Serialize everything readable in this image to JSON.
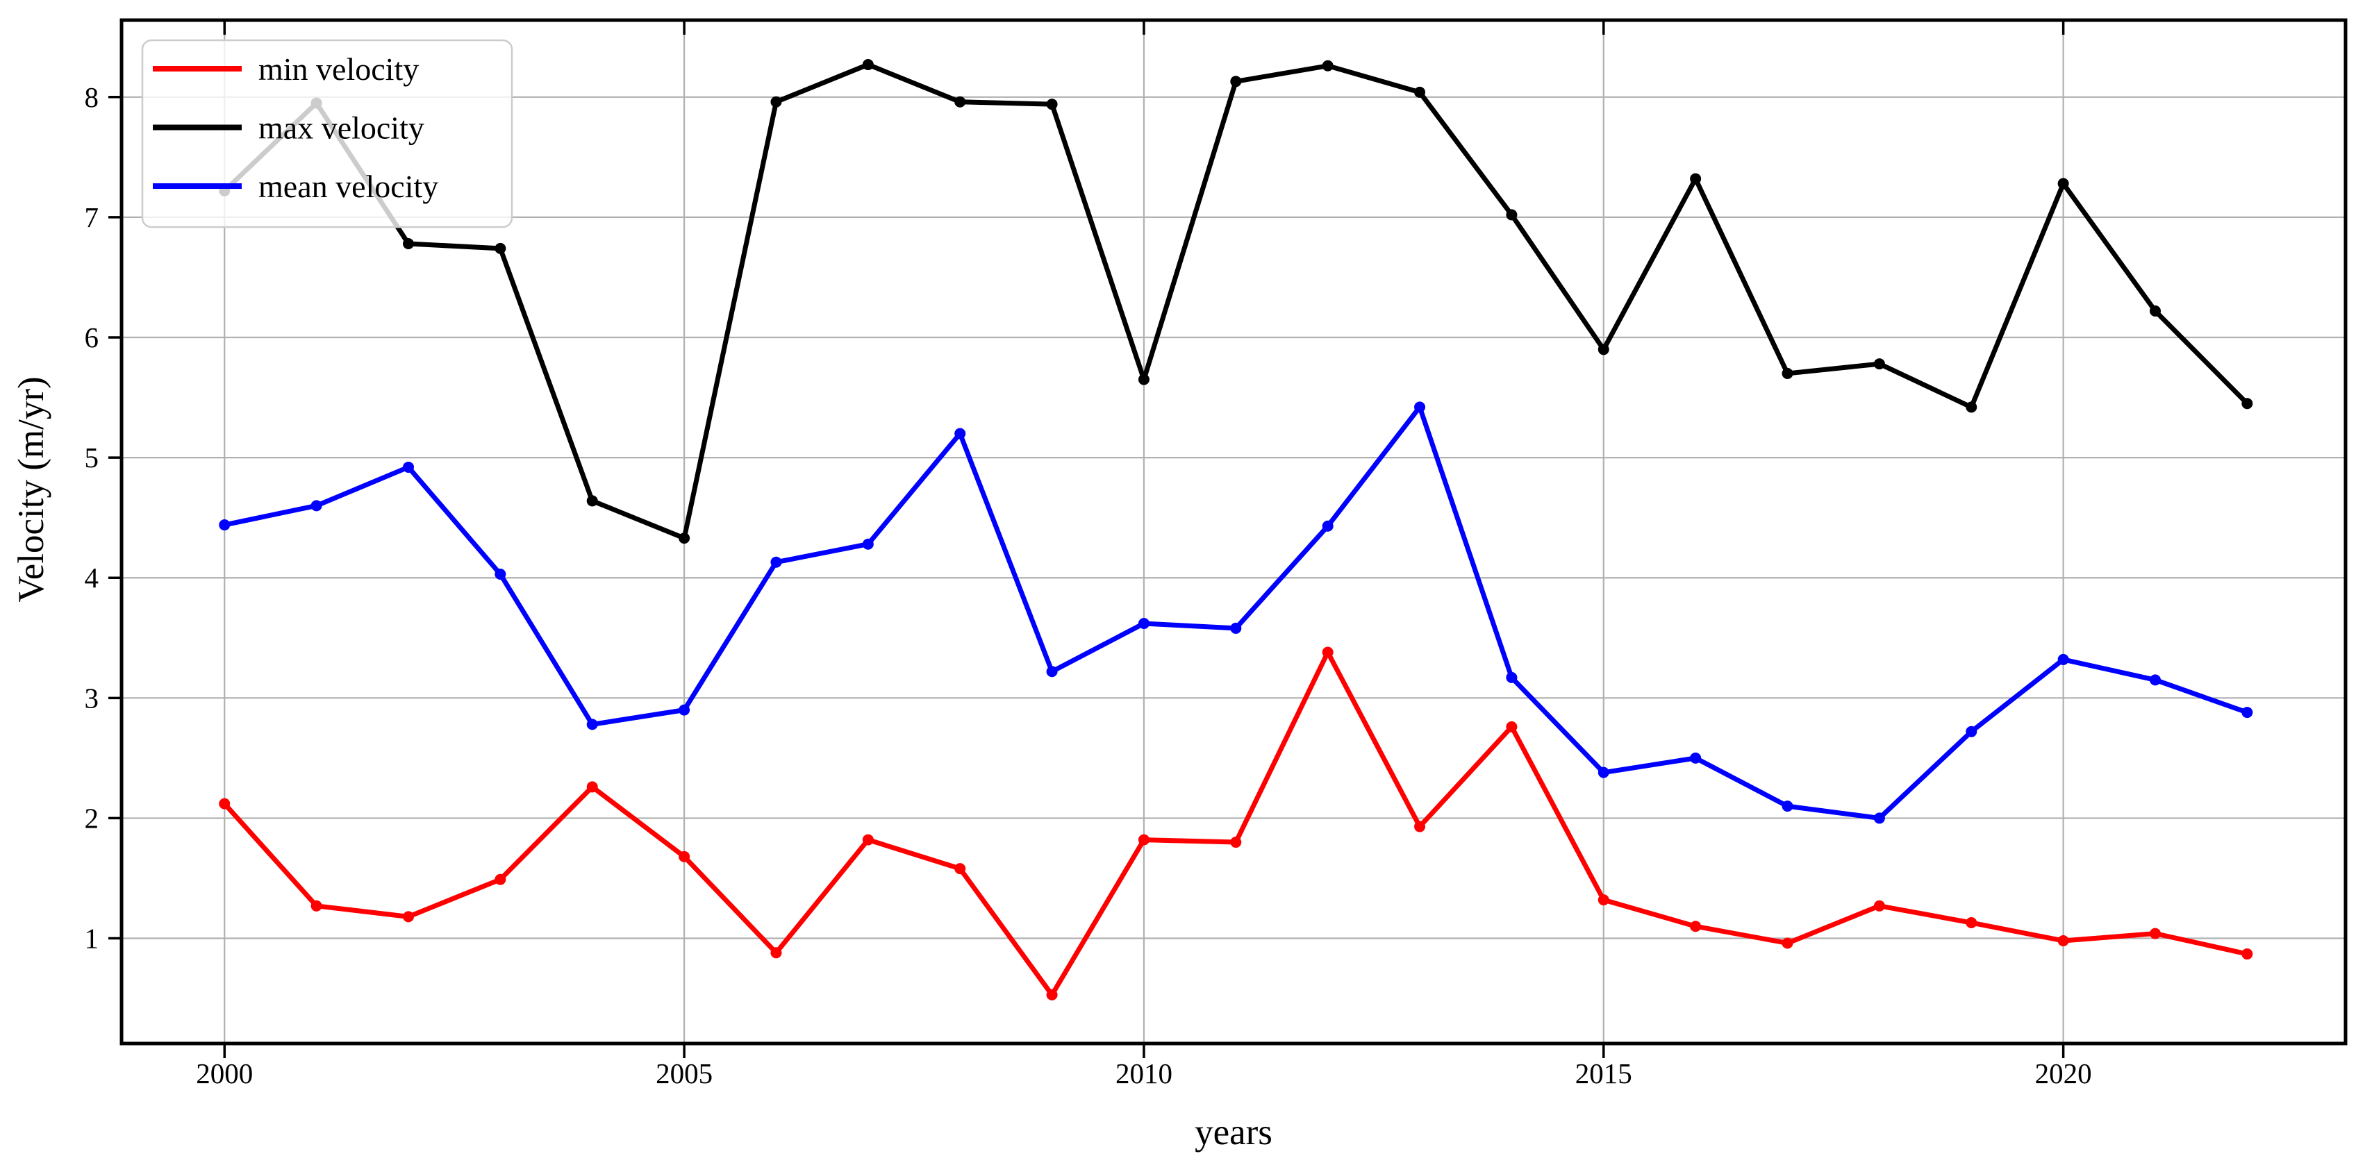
{
  "chart_data": {
    "type": "line",
    "title": "",
    "xlabel": "years",
    "ylabel": "Velocity (m/yr)",
    "categories": [
      2000,
      2001,
      2002,
      2003,
      2004,
      2005,
      2006,
      2007,
      2008,
      2009,
      2010,
      2011,
      2012,
      2013,
      2014,
      2015,
      2016,
      2017,
      2018,
      2019,
      2020,
      2021,
      2022
    ],
    "series": [
      {
        "name": "min velocity",
        "color": "#ff0000",
        "values": [
          2.12,
          1.27,
          1.18,
          1.49,
          2.26,
          1.68,
          0.88,
          1.82,
          1.58,
          0.53,
          1.82,
          1.8,
          3.38,
          1.93,
          2.76,
          1.32,
          1.1,
          0.96,
          1.27,
          1.13,
          0.98,
          1.04,
          0.87
        ]
      },
      {
        "name": "max velocity",
        "color": "#000000",
        "values": [
          7.22,
          7.95,
          6.78,
          6.74,
          4.64,
          4.33,
          7.96,
          8.27,
          7.96,
          7.94,
          5.65,
          8.13,
          8.26,
          8.04,
          7.02,
          5.9,
          7.32,
          5.7,
          5.78,
          5.42,
          7.28,
          6.22,
          5.45
        ]
      },
      {
        "name": "mean velocity",
        "color": "#0000ff",
        "values": [
          4.44,
          4.6,
          4.92,
          4.03,
          2.78,
          2.9,
          4.13,
          4.28,
          5.2,
          3.22,
          3.62,
          3.58,
          4.43,
          5.42,
          3.17,
          2.38,
          2.5,
          2.1,
          2.0,
          2.72,
          3.32,
          3.15,
          2.88
        ]
      }
    ],
    "xticks": [
      2000,
      2005,
      2010,
      2015,
      2020
    ],
    "yticks": [
      1,
      2,
      3,
      4,
      5,
      6,
      7,
      8
    ],
    "xlim": [
      1998.88,
      2023.07
    ],
    "ylim": [
      0.125,
      8.64
    ],
    "grid": true,
    "legend_position": "upper left",
    "marker": "dot"
  },
  "colors": {
    "background": "#ffffff",
    "grid": "#b0b0b0",
    "spine": "#000000",
    "tick_label": "#000000",
    "legend_border": "#cccccc",
    "legend_fill": "rgba(255,255,255,0.8)"
  }
}
